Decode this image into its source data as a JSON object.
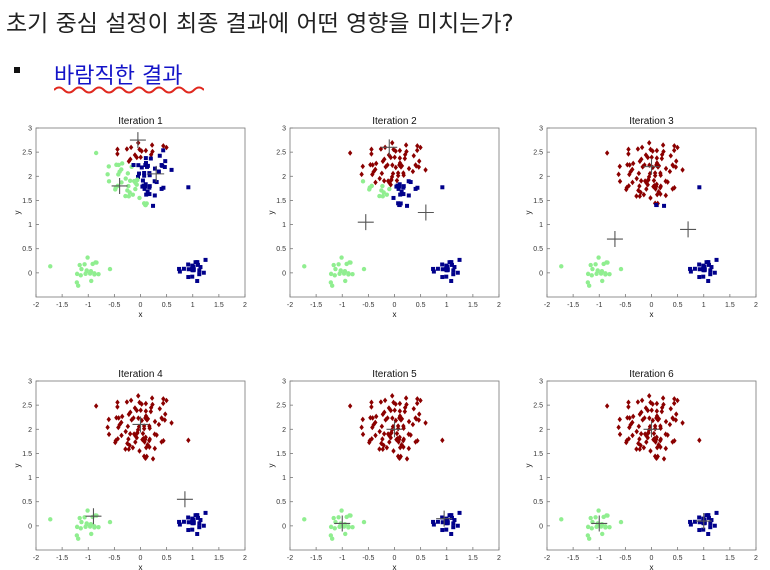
{
  "page": {
    "title": "초기 중심 설정이 최종 결과에 어떤 영향을 미치는가?",
    "subtitle": "바람직한 결과"
  },
  "colors": {
    "cluster_1": "#90EE90",
    "cluster_2": "#8B0000",
    "cluster_3": "#00008B",
    "centroid": "#555555"
  },
  "chart_data": [
    {
      "type": "scatter",
      "title": "Iteration 1",
      "xlabel": "x",
      "ylabel": "y",
      "xlim": [
        -2,
        2
      ],
      "ylim": [
        -0.5,
        3
      ],
      "xticks": [
        "-2",
        "-1.5",
        "-1",
        "-0.5",
        "0",
        "0.5",
        "1",
        "1.5",
        "2"
      ],
      "yticks": [
        "0",
        "0.5",
        "1",
        "1.5",
        "2",
        "2.5",
        "3"
      ],
      "centroids": [
        [
          -0.4,
          1.8
        ],
        [
          -0.05,
          2.75
        ],
        [
          0.3,
          2.05
        ]
      ]
    },
    {
      "type": "scatter",
      "title": "Iteration 2",
      "xlabel": "x",
      "ylabel": "y",
      "xlim": [
        -2,
        2
      ],
      "ylim": [
        -0.5,
        3
      ],
      "xticks": [
        "-2",
        "-1.5",
        "-1",
        "-0.5",
        "0",
        "0.5",
        "1",
        "1.5",
        "2"
      ],
      "yticks": [
        "0",
        "0.5",
        "1",
        "1.5",
        "2",
        "2.5",
        "3"
      ],
      "centroids": [
        [
          -0.55,
          1.05
        ],
        [
          -0.1,
          2.6
        ],
        [
          0.6,
          1.25
        ]
      ]
    },
    {
      "type": "scatter",
      "title": "Iteration 3",
      "xlabel": "x",
      "ylabel": "y",
      "xlim": [
        -2,
        2
      ],
      "ylim": [
        -0.5,
        3
      ],
      "xticks": [
        "-2",
        "-1.5",
        "-1",
        "-0.5",
        "0",
        "0.5",
        "1",
        "1.5",
        "2"
      ],
      "yticks": [
        "0",
        "0.5",
        "1",
        "1.5",
        "2",
        "2.5",
        "3"
      ],
      "centroids": [
        [
          -0.7,
          0.7
        ],
        [
          0.0,
          2.2
        ],
        [
          0.7,
          0.9
        ]
      ]
    },
    {
      "type": "scatter",
      "title": "Iteration 4",
      "xlabel": "x",
      "ylabel": "y",
      "xlim": [
        -2,
        2
      ],
      "ylim": [
        -0.5,
        3
      ],
      "xticks": [
        "-2",
        "-1.5",
        "-1",
        "-0.5",
        "0",
        "0.5",
        "1",
        "1.5",
        "2"
      ],
      "yticks": [
        "0",
        "0.5",
        "1",
        "1.5",
        "2",
        "2.5",
        "3"
      ],
      "centroids": [
        [
          -0.9,
          0.2
        ],
        [
          0.0,
          2.1
        ],
        [
          0.85,
          0.55
        ]
      ]
    },
    {
      "type": "scatter",
      "title": "Iteration 5",
      "xlabel": "x",
      "ylabel": "y",
      "xlim": [
        -2,
        2
      ],
      "ylim": [
        -0.5,
        3
      ],
      "xticks": [
        "-2",
        "-1.5",
        "-1",
        "-0.5",
        "0",
        "0.5",
        "1",
        "1.5",
        "2"
      ],
      "yticks": [
        "0",
        "0.5",
        "1",
        "1.5",
        "2",
        "2.5",
        "3"
      ],
      "centroids": [
        [
          -1.0,
          0.05
        ],
        [
          0.0,
          2.0
        ],
        [
          0.95,
          0.15
        ]
      ]
    },
    {
      "type": "scatter",
      "title": "Iteration 6",
      "xlabel": "x",
      "ylabel": "y",
      "xlim": [
        -2,
        2
      ],
      "ylim": [
        -0.5,
        3
      ],
      "xticks": [
        "-2",
        "-1.5",
        "-1",
        "-0.5",
        "0",
        "0.5",
        "1",
        "1.5",
        "2"
      ],
      "yticks": [
        "0",
        "0.5",
        "1",
        "1.5",
        "2",
        "2.5",
        "3"
      ],
      "centroids": [
        [
          -1.0,
          0.05
        ],
        [
          0.0,
          2.0
        ],
        [
          1.0,
          0.1
        ]
      ]
    }
  ]
}
